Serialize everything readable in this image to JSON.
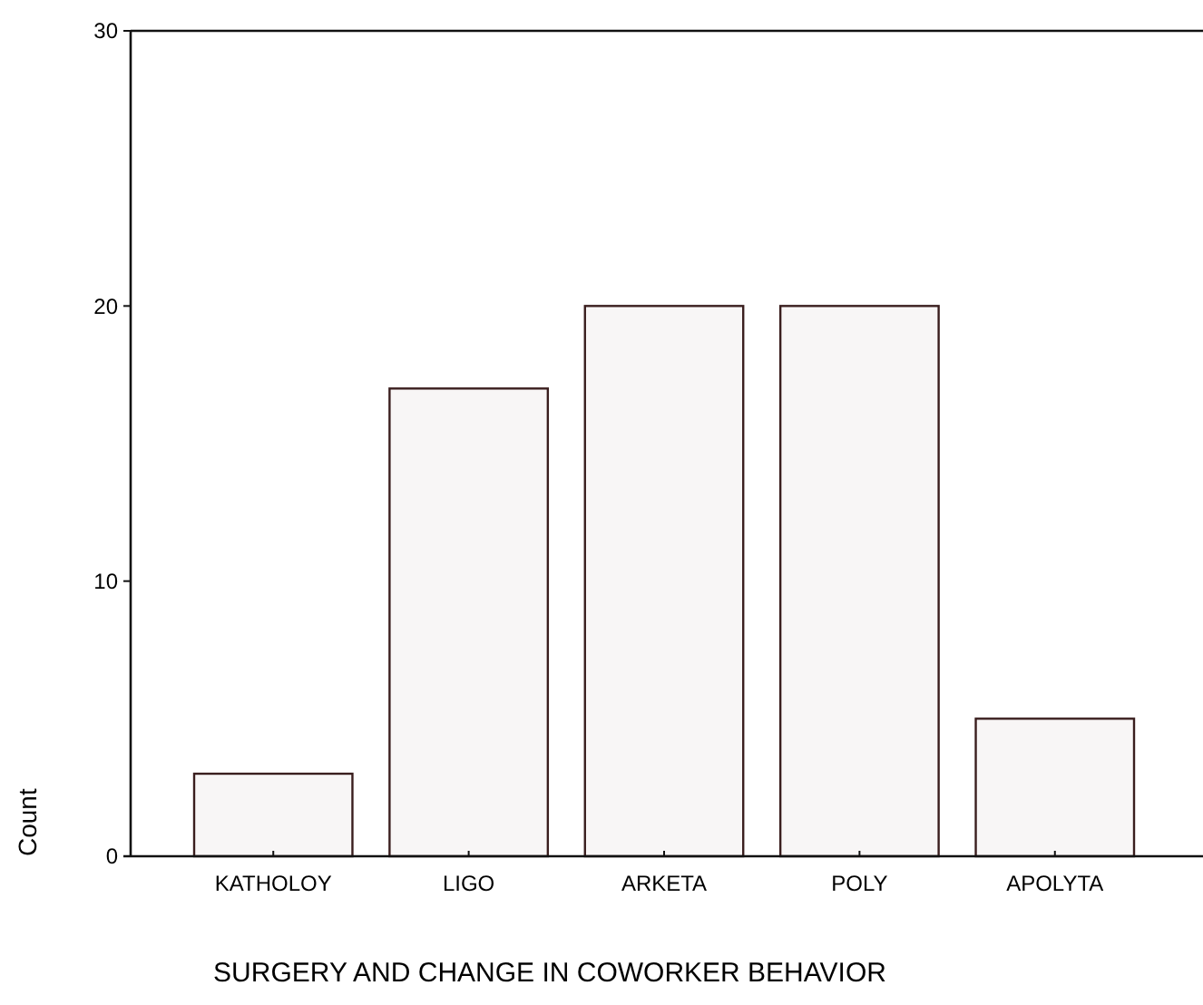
{
  "chart_data": {
    "type": "bar",
    "xlabel": "SURGERY AND CHANGE IN COWORKER BEHAVIOR",
    "ylabel": "Count",
    "categories": [
      "KATHOLOY",
      "LIGO",
      "ARKETA",
      "POLY",
      "APOLYTA"
    ],
    "values": [
      3,
      17,
      20,
      20,
      5
    ],
    "color": "#f8f6f6",
    "ylim": [
      0,
      30
    ],
    "yticks": [
      0,
      10,
      20,
      30
    ],
    "grid": false
  }
}
